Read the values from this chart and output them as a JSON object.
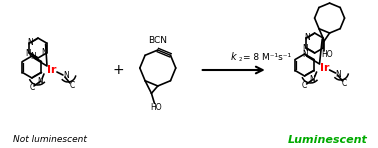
{
  "title": "",
  "background_color": "#ffffff",
  "arrow_color": "#000000",
  "ir_color": "#ff0000",
  "luminescent_color": "#00aa00",
  "not_luminescent_text": "Not luminescent",
  "luminescent_text": "Luminescent",
  "bcn_text": "BCN",
  "k2_text": "k",
  "k2_subscript": "2",
  "k2_value": " = 8 M⁻¹s⁻¹",
  "plus_text": "+",
  "fig_width": 3.78,
  "fig_height": 1.48,
  "dpi": 100
}
